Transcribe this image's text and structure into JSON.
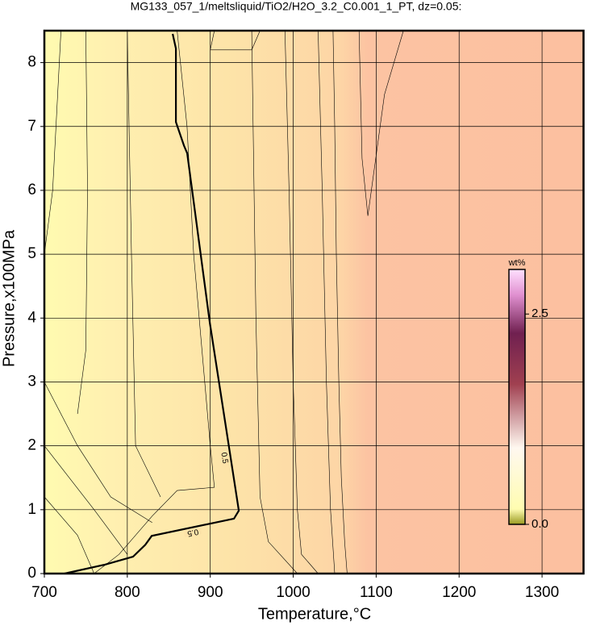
{
  "chart_data": {
    "type": "contour",
    "title": "MG133_057_1/meltsliquid/TiO2/H2O_3.2_C0.001_1_PT, dz=0.05:",
    "x_label": "Temperature,°C",
    "y_label": "Pressure,x100MPa",
    "xlim": [
      700,
      1350
    ],
    "ylim": [
      0,
      8.5
    ],
    "xticks": [
      700,
      800,
      900,
      1000,
      1100,
      1200,
      1300
    ],
    "yticks": [
      0,
      1,
      2,
      3,
      4,
      5,
      6,
      7,
      8
    ],
    "grid": true,
    "labeled_contour": {
      "label": "0.5",
      "x": [
        724.3,
        773,
        807,
        821.6,
        829.4,
        928.6,
        934.4,
        899.4,
        872.2,
        868.3,
        858.6,
        858.6,
        854.7
      ],
      "y": [
        0,
        0.14,
        0.265,
        0.45,
        0.59,
        0.86,
        0.985,
        3.93,
        6.58,
        6.7,
        7.07,
        8.22,
        8.45
      ]
    },
    "contours": [
      {
        "x": [
          1065,
          1062,
          1058,
          1055,
          1052,
          1050,
          1048
        ],
        "y": [
          0,
          0.5,
          1.5,
          3,
          5,
          7,
          8.5
        ]
      },
      {
        "x": [
          1132.9,
          1110,
          1090,
          1083,
          1079.4
        ],
        "y": [
          8.5,
          7.5,
          5.6,
          6.5,
          8.5
        ]
      },
      {
        "x": [
          1050,
          1045,
          1040,
          1035,
          1030
        ],
        "y": [
          0,
          1,
          3,
          6,
          8.5
        ]
      },
      {
        "x": [
          1030,
          1010,
          1005,
          1000,
          995,
          990
        ],
        "y": [
          0,
          0.3,
          1,
          3,
          6,
          8.5
        ]
      },
      {
        "x": [
          1005,
          970,
          960,
          955,
          950
        ],
        "y": [
          0,
          0.5,
          1.2,
          4,
          8.5
        ]
      },
      {
        "x": [
          760,
          790,
          830,
          860,
          905,
          900,
          880,
          872,
          860
        ],
        "y": [
          0,
          0.3,
          0.9,
          1.3,
          1.35,
          2,
          5,
          7,
          8.5
        ]
      },
      {
        "x": [
          700,
          740,
          760
        ],
        "y": [
          1.2,
          0.6,
          0
        ]
      },
      {
        "x": [
          700,
          760,
          800
        ],
        "y": [
          2.0,
          1.0,
          0.3
        ]
      },
      {
        "x": [
          700,
          740,
          780,
          830
        ],
        "y": [
          3.0,
          2.0,
          1.2,
          0.8
        ]
      },
      {
        "x": [
          750,
          752,
          750,
          740
        ],
        "y": [
          8.5,
          6,
          3.5,
          2.5
        ]
      },
      {
        "x": [
          800,
          805,
          810,
          840
        ],
        "y": [
          8.5,
          5,
          2,
          1.2
        ]
      },
      {
        "x": [
          720,
          710,
          700
        ],
        "y": [
          8.5,
          6,
          5
        ]
      },
      {
        "x": [
          905,
          900,
          950,
          960
        ],
        "y": [
          8.5,
          8.2,
          8.2,
          8.5
        ]
      }
    ],
    "colorbar": {
      "title": "wt%",
      "clim": [
        0,
        3.03
      ],
      "ticks": [
        {
          "value": 0,
          "label": "0.0"
        },
        2.5
      ]
    }
  }
}
